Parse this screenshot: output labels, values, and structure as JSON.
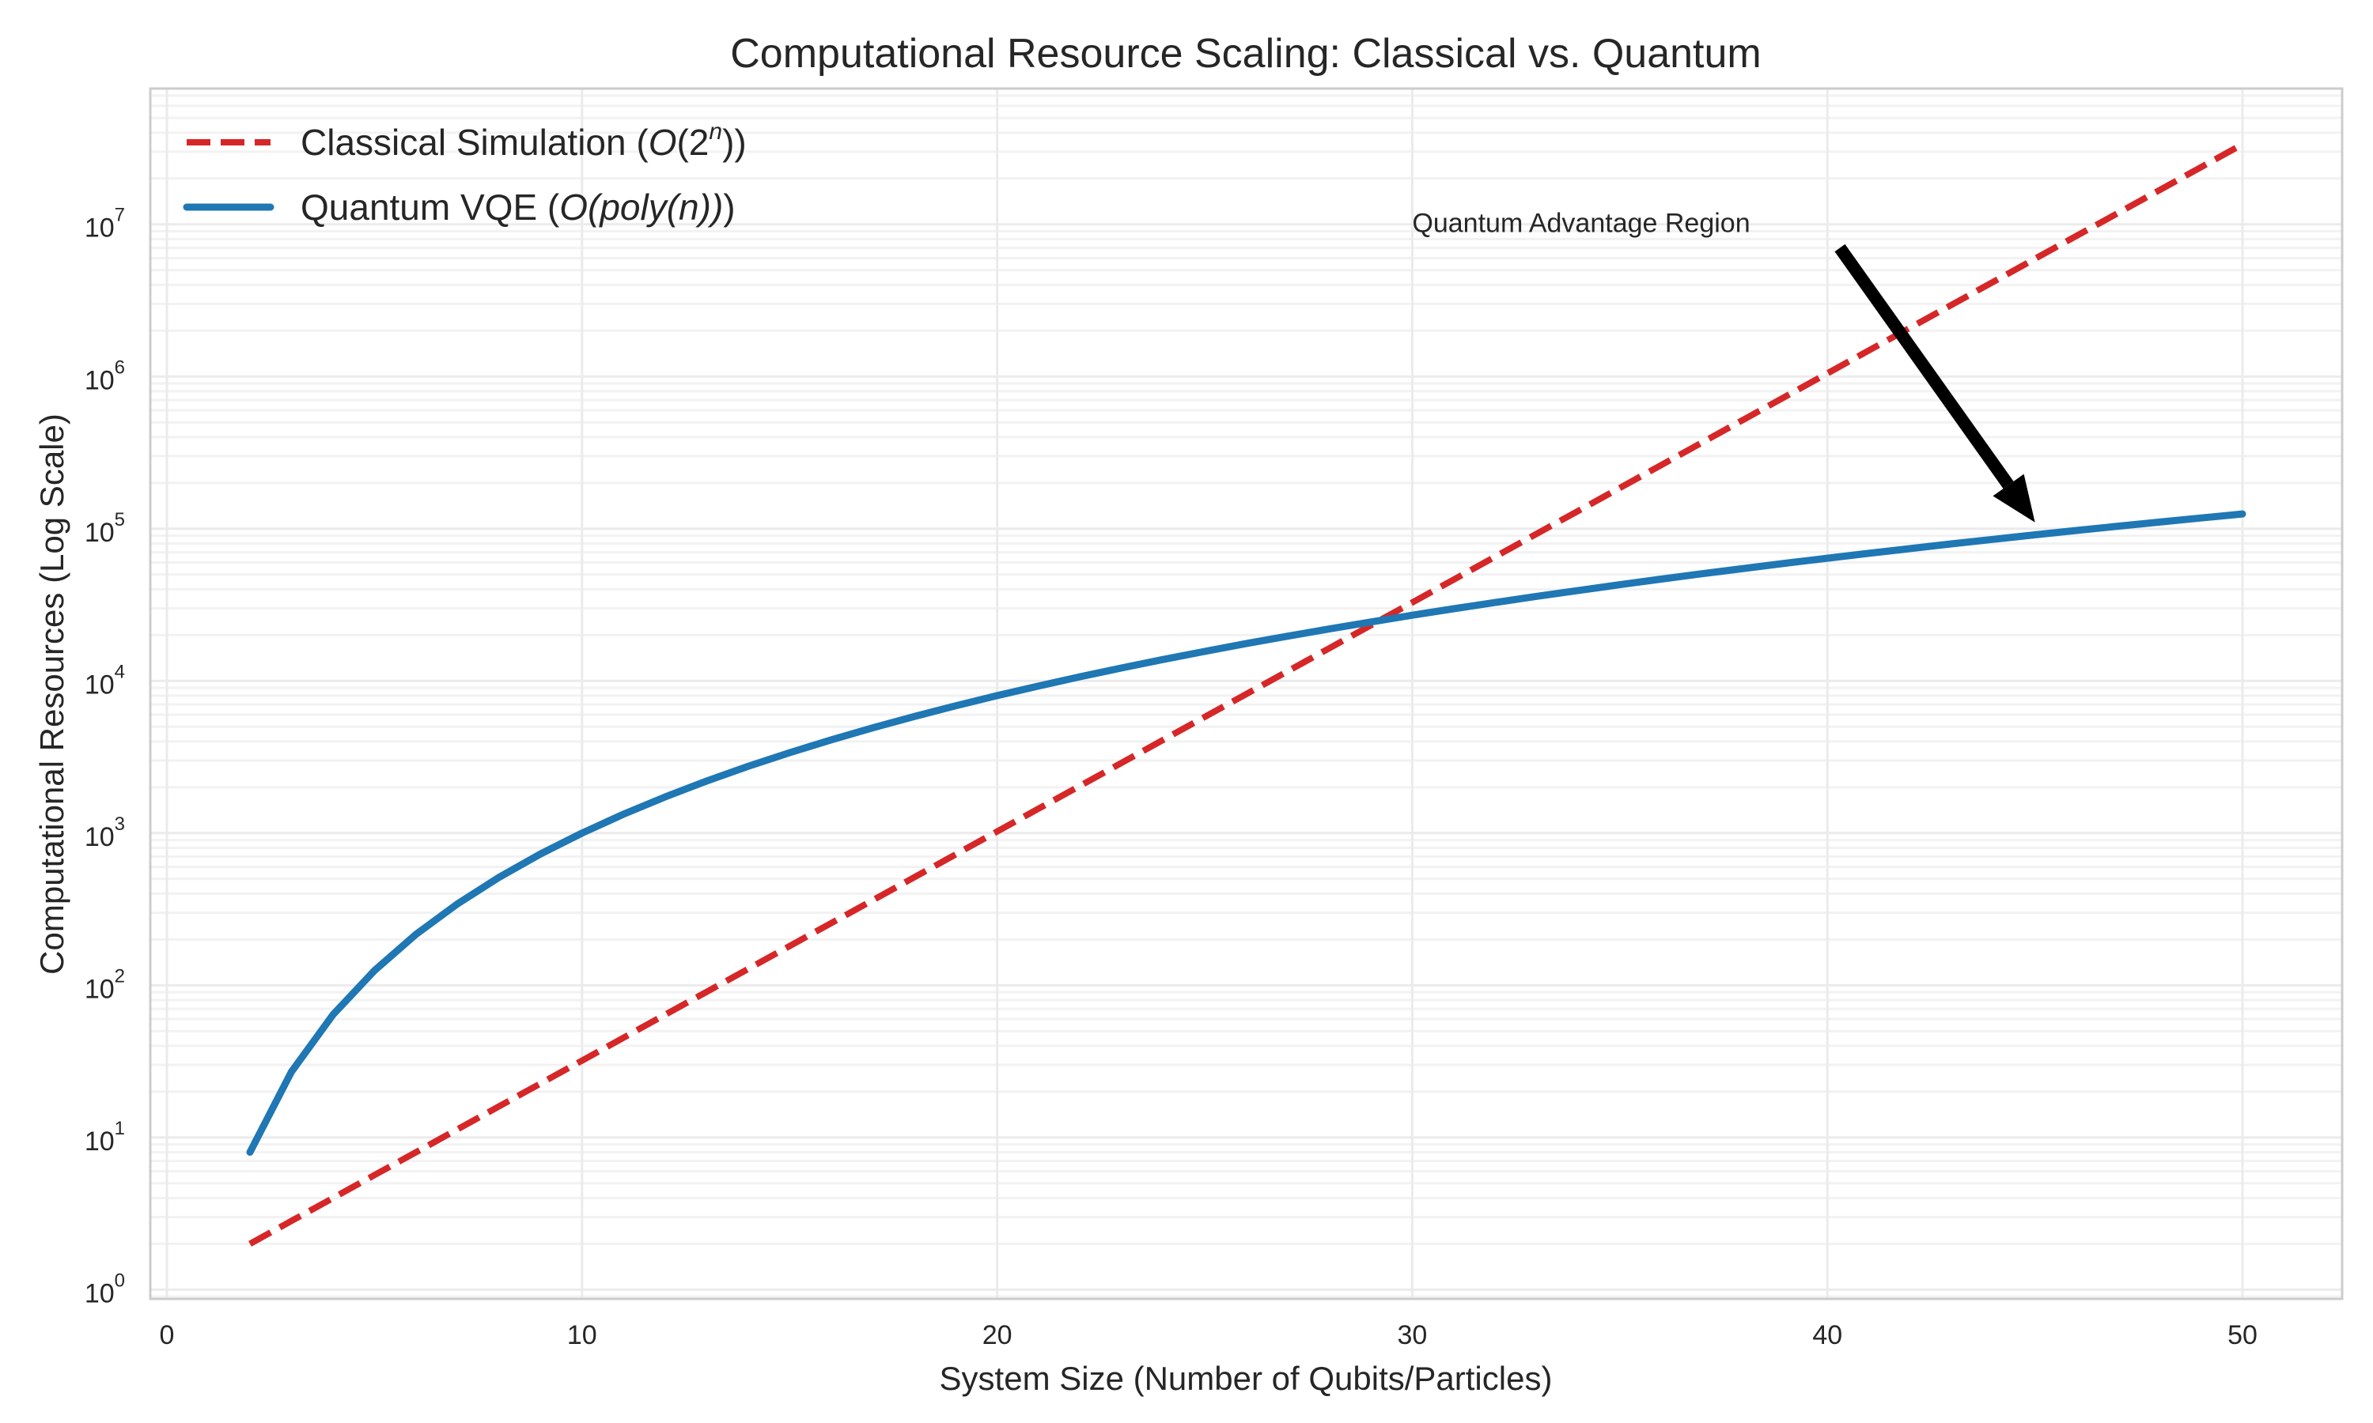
{
  "chart_data": {
    "type": "line",
    "title": "Computational Resource Scaling: Classical vs. Quantum",
    "xlabel": "System Size (Number of Qubits/Particles)",
    "ylabel": "Computational Resources (Log Scale)",
    "xlim": [
      -0.4,
      52.4
    ],
    "ylim": [
      0.87,
      78000000
    ],
    "yscale": "log",
    "grid": true,
    "legend_placement": "top-left",
    "xticks": [
      "0",
      "10",
      "20",
      "30",
      "40",
      "50"
    ],
    "yticks": [
      "10^0",
      "10^1",
      "10^2",
      "10^3",
      "10^4",
      "10^5",
      "10^6",
      "10^7"
    ],
    "x": [
      2,
      3,
      4,
      5,
      6,
      7,
      8,
      9,
      10,
      11,
      12,
      13,
      14,
      15,
      16,
      17,
      18,
      19,
      20,
      21,
      22,
      23,
      24,
      25,
      26,
      27,
      28,
      29,
      30,
      31,
      32,
      33,
      34,
      35,
      36,
      37,
      38,
      39,
      40,
      41,
      42,
      43,
      44,
      45,
      46,
      47,
      48,
      49,
      50
    ],
    "series": [
      {
        "name": "Classical Simulation (O(2^n))",
        "color": "#d62728",
        "style": "dashed",
        "values": [
          2,
          2.83,
          4,
          5.66,
          8,
          11.31,
          16,
          22.63,
          32,
          45.25,
          64,
          90.51,
          128,
          181.02,
          256,
          362.04,
          512,
          724.08,
          1024,
          1448.15,
          2048,
          2896.31,
          4096,
          5792.62,
          8192,
          11585.24,
          16384,
          23170.48,
          32768,
          46340.95,
          65536,
          92681.9,
          131072,
          185363.8,
          262144,
          370727.6,
          524288,
          741455.2,
          1048576,
          1482910.4,
          2097152,
          2965820.8,
          4194304,
          5931641.6,
          8388608,
          11863283.2,
          16777216,
          23726566.4,
          33554432
        ]
      },
      {
        "name": "Quantum VQE (O(poly(n)))",
        "color": "#1f77b4",
        "style": "solid",
        "values": [
          8,
          27,
          64,
          125,
          216,
          343,
          512,
          729,
          1000,
          1331,
          1728,
          2197,
          2744,
          3375,
          4096,
          4913,
          5832,
          6859,
          8000,
          9261,
          10648,
          12167,
          13824,
          15625,
          17576,
          19683,
          21952,
          24389,
          27000,
          29791,
          32768,
          35937,
          39304,
          42875,
          46656,
          50653,
          54872,
          59319,
          64000,
          68921,
          74088,
          79507,
          85184,
          91125,
          97336,
          103823,
          110592,
          117649,
          125000
        ]
      }
    ],
    "legend": {
      "classical_prefix": "Classical Simulation (",
      "classical_math_o": "O",
      "classical_math_rest": "(2",
      "classical_sup": "n",
      "classical_suffix": "))",
      "quantum_prefix": "Quantum VQE (",
      "quantum_math": "O(poly(n))",
      "quantum_suffix": ")"
    },
    "annotations": [
      {
        "text": "Quantum Advantage Region",
        "text_at": [
          30,
          10000000
        ],
        "arrow_to": [
          45,
          100000
        ],
        "arrow_color": "#000000"
      }
    ]
  }
}
